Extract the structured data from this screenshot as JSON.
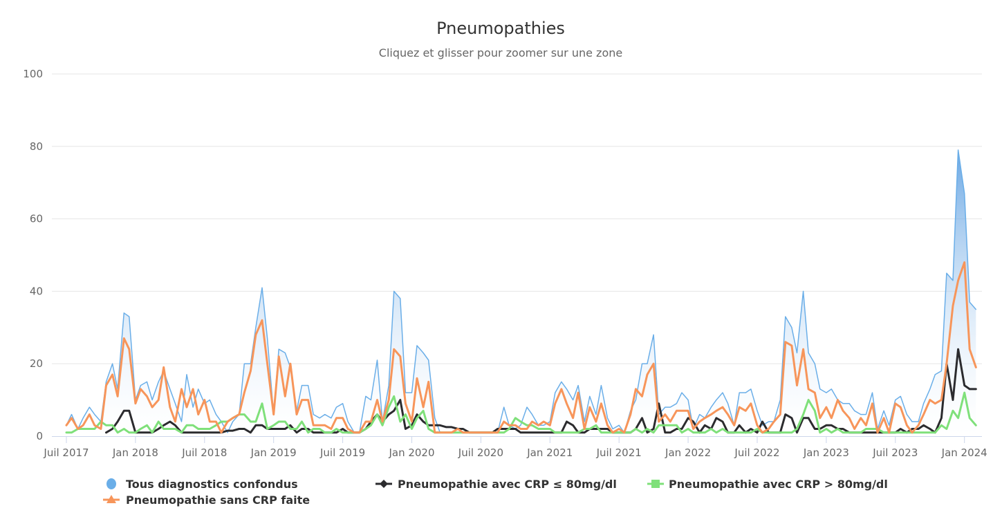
{
  "chart_data": {
    "type": "area",
    "title": "Pneumopathies",
    "subtitle": "Cliquez et glisser pour zoomer sur une zone",
    "xlabel": "",
    "ylabel": "",
    "ylim": [
      0,
      100
    ],
    "grid": true,
    "legend_position": "bottom",
    "y_ticks": [
      "0",
      "20",
      "40",
      "60",
      "80",
      "100"
    ],
    "x_ticks": [
      {
        "label": "Juil 2017",
        "date": "2017-07-01"
      },
      {
        "label": "Jan 2018",
        "date": "2018-01-01"
      },
      {
        "label": "Juil 2018",
        "date": "2018-07-01"
      },
      {
        "label": "Jan 2019",
        "date": "2019-01-01"
      },
      {
        "label": "Juil 2019",
        "date": "2019-07-01"
      },
      {
        "label": "Jan 2020",
        "date": "2020-01-01"
      },
      {
        "label": "Juil 2020",
        "date": "2020-07-01"
      },
      {
        "label": "Jan 2021",
        "date": "2021-01-01"
      },
      {
        "label": "Juil 2021",
        "date": "2021-07-01"
      },
      {
        "label": "Jan 2022",
        "date": "2022-01-01"
      },
      {
        "label": "Juil 2022",
        "date": "2022-07-01"
      },
      {
        "label": "Jan 2023",
        "date": "2023-01-01"
      },
      {
        "label": "Juil 2023",
        "date": "2023-07-01"
      },
      {
        "label": "Jan 2024",
        "date": "2024-01-01"
      }
    ],
    "x": [
      "2017-07-01",
      "2017-07-15",
      "2017-08-01",
      "2017-08-15",
      "2017-09-01",
      "2017-09-15",
      "2017-10-01",
      "2017-10-15",
      "2017-11-01",
      "2017-11-15",
      "2017-12-01",
      "2017-12-15",
      "2018-01-01",
      "2018-01-15",
      "2018-02-01",
      "2018-02-15",
      "2018-03-01",
      "2018-03-15",
      "2018-04-01",
      "2018-04-15",
      "2018-05-01",
      "2018-05-15",
      "2018-06-01",
      "2018-06-15",
      "2018-07-01",
      "2018-07-15",
      "2018-08-01",
      "2018-08-15",
      "2018-09-01",
      "2018-09-15",
      "2018-10-01",
      "2018-10-15",
      "2018-11-01",
      "2018-11-15",
      "2018-12-01",
      "2018-12-15",
      "2019-01-01",
      "2019-01-15",
      "2019-02-01",
      "2019-02-15",
      "2019-03-01",
      "2019-03-15",
      "2019-04-01",
      "2019-04-15",
      "2019-05-01",
      "2019-05-15",
      "2019-06-01",
      "2019-06-15",
      "2019-07-01",
      "2019-07-15",
      "2019-08-01",
      "2019-08-15",
      "2019-09-01",
      "2019-09-15",
      "2019-10-01",
      "2019-10-15",
      "2019-11-01",
      "2019-11-15",
      "2019-12-01",
      "2019-12-15",
      "2020-01-01",
      "2020-01-15",
      "2020-02-01",
      "2020-02-15",
      "2020-03-01",
      "2020-03-15",
      "2020-04-01",
      "2020-04-15",
      "2020-05-01",
      "2020-05-15",
      "2020-06-01",
      "2020-06-15",
      "2020-07-01",
      "2020-07-15",
      "2020-08-01",
      "2020-08-15",
      "2020-09-01",
      "2020-09-15",
      "2020-10-01",
      "2020-10-15",
      "2020-11-01",
      "2020-11-15",
      "2020-12-01",
      "2020-12-15",
      "2021-01-01",
      "2021-01-15",
      "2021-02-01",
      "2021-02-15",
      "2021-03-01",
      "2021-03-15",
      "2021-04-01",
      "2021-04-15",
      "2021-05-01",
      "2021-05-15",
      "2021-06-01",
      "2021-06-15",
      "2021-07-01",
      "2021-07-15",
      "2021-08-01",
      "2021-08-15",
      "2021-09-01",
      "2021-09-15",
      "2021-10-01",
      "2021-10-15",
      "2021-11-01",
      "2021-11-15",
      "2021-12-01",
      "2021-12-15",
      "2022-01-01",
      "2022-01-15",
      "2022-02-01",
      "2022-02-15",
      "2022-03-01",
      "2022-03-15",
      "2022-04-01",
      "2022-04-15",
      "2022-05-01",
      "2022-05-15",
      "2022-06-01",
      "2022-06-15",
      "2022-07-01",
      "2022-07-15",
      "2022-08-01",
      "2022-08-15",
      "2022-09-01",
      "2022-09-15",
      "2022-10-01",
      "2022-10-15",
      "2022-11-01",
      "2022-11-15",
      "2022-12-01",
      "2022-12-15",
      "2023-01-01",
      "2023-01-15",
      "2023-02-01",
      "2023-02-15",
      "2023-03-01",
      "2023-03-15",
      "2023-04-01",
      "2023-04-15",
      "2023-05-01",
      "2023-05-15",
      "2023-06-01",
      "2023-06-15",
      "2023-07-01",
      "2023-07-15",
      "2023-08-01",
      "2023-08-15",
      "2023-09-01",
      "2023-09-15",
      "2023-10-01",
      "2023-10-15",
      "2023-11-01",
      "2023-11-15",
      "2023-12-01",
      "2023-12-15",
      "2024-01-01",
      "2024-01-15",
      "2024-02-01"
    ],
    "series": [
      {
        "name": "Tous diagnostics confondus",
        "type": "area",
        "color": "#6aaee8",
        "marker": "circle",
        "values": [
          3,
          6,
          2,
          5,
          8,
          6,
          4,
          15,
          20,
          13,
          34,
          33,
          10,
          14,
          15,
          10,
          15,
          18,
          13,
          9,
          4,
          17,
          8,
          13,
          9,
          10,
          6,
          4,
          1,
          4,
          6,
          20,
          20,
          30,
          41,
          27,
          6,
          24,
          23,
          19,
          7,
          14,
          14,
          6,
          5,
          6,
          5,
          8,
          9,
          4,
          1,
          1,
          11,
          10,
          21,
          4,
          14,
          40,
          38,
          12,
          12,
          25,
          23,
          21,
          5,
          1,
          1,
          1,
          1,
          1,
          1,
          1,
          1,
          1,
          1,
          1,
          8,
          3,
          2,
          3,
          8,
          6,
          3,
          3,
          4,
          12,
          15,
          13,
          10,
          14,
          4,
          11,
          6,
          14,
          5,
          2,
          3,
          1,
          7,
          10,
          20,
          20,
          28,
          6,
          8,
          8,
          9,
          12,
          10,
          2,
          6,
          5,
          8,
          10,
          12,
          9,
          3,
          12,
          12,
          13,
          7,
          3,
          4,
          4,
          10,
          33,
          30,
          23,
          40,
          23,
          20,
          13,
          12,
          13,
          10,
          9,
          9,
          7,
          6,
          6,
          12,
          2,
          7,
          3,
          10,
          11,
          6,
          4,
          4,
          9,
          13,
          17,
          18,
          45,
          43,
          79,
          67,
          37,
          35
        ]
      },
      {
        "name": "Pneumopathie avec CRP ≤ 80mg/dl",
        "type": "line",
        "color": "#2b2b2e",
        "marker": "diamond",
        "values": [
          null,
          null,
          null,
          null,
          null,
          null,
          null,
          1,
          2,
          4,
          7,
          7,
          1,
          1,
          1,
          1,
          2,
          3,
          4,
          3,
          1,
          1,
          1,
          1,
          1,
          1,
          1,
          1,
          1.5,
          1.5,
          2,
          2,
          1,
          3,
          3,
          2,
          2,
          2,
          2,
          3,
          1,
          2,
          2,
          1,
          1,
          1,
          1,
          1,
          2,
          1,
          1,
          1,
          2,
          4,
          6,
          4,
          6,
          7,
          10,
          2,
          3,
          6,
          4,
          3,
          3,
          3,
          2.5,
          2.5,
          2,
          2,
          1,
          1,
          1,
          1,
          1,
          2,
          2,
          2,
          2,
          1,
          1,
          1,
          1,
          1,
          1,
          1,
          1,
          4,
          3,
          1,
          1,
          2,
          2,
          2,
          2,
          1,
          1,
          1,
          1,
          2,
          5,
          1,
          2,
          9,
          1,
          1,
          2,
          2,
          5,
          4,
          1,
          3,
          2,
          5,
          4,
          1,
          1,
          3,
          1,
          2,
          1,
          4,
          1,
          1,
          1,
          6,
          5,
          1,
          5,
          5,
          2,
          2,
          3,
          3,
          2,
          2,
          1,
          1,
          1,
          1,
          1,
          1,
          1,
          1,
          1,
          2,
          1,
          2,
          2,
          3,
          2,
          1,
          5,
          20,
          10,
          24,
          14,
          13,
          13
        ]
      },
      {
        "name": "Pneumopathie avec CRP > 80mg/dl",
        "type": "line",
        "color": "#7fe07a",
        "marker": "square",
        "values": [
          1,
          1,
          2,
          2,
          2,
          2,
          4,
          3,
          3,
          1,
          2,
          1,
          1,
          2,
          3,
          1,
          4,
          2,
          2,
          2,
          1,
          3,
          3,
          2,
          2,
          2,
          3,
          4,
          4,
          5,
          6,
          6,
          4,
          4,
          9,
          2,
          3,
          4,
          4,
          2,
          2,
          4,
          1,
          2,
          2,
          1,
          1,
          2,
          1,
          1,
          1,
          1,
          2,
          3,
          6,
          3,
          8,
          11,
          4,
          6,
          2,
          5,
          7,
          2,
          1,
          1,
          1,
          1,
          1,
          1,
          1,
          1,
          1,
          1,
          1,
          1,
          1,
          2,
          5,
          4,
          3,
          3,
          2,
          2,
          2,
          1,
          1,
          1,
          1,
          1,
          2,
          2,
          3,
          1,
          1,
          1,
          1,
          1,
          1,
          2,
          1,
          2,
          1,
          3,
          3,
          3,
          3,
          1,
          2,
          1,
          1,
          1,
          2,
          1,
          2,
          1,
          1,
          1,
          1,
          1,
          2,
          1,
          1,
          1,
          1,
          1,
          1,
          2,
          6,
          10,
          7,
          1,
          2,
          1,
          2,
          1,
          1,
          1,
          1,
          2,
          2,
          2,
          1,
          1,
          1,
          1,
          1,
          1,
          1,
          1,
          1,
          1,
          3,
          2,
          7,
          5,
          12,
          5,
          3
        ]
      },
      {
        "name": "Pneumopathie sans CRP faite",
        "type": "line",
        "color": "#f7955a",
        "marker": "triangle",
        "values": [
          3,
          5,
          2,
          3,
          6,
          3,
          2,
          14,
          17,
          11,
          27,
          24,
          9,
          13,
          11,
          8,
          10,
          19,
          8,
          4,
          13,
          8,
          13,
          6,
          10,
          4,
          4,
          1,
          4,
          5,
          6,
          12,
          18,
          28,
          32,
          20,
          6,
          22,
          11,
          20,
          6,
          10,
          10,
          3,
          3,
          3,
          2,
          5,
          5,
          2,
          1,
          1,
          4,
          4,
          10,
          4,
          10,
          24,
          22,
          9,
          4,
          16,
          8,
          15,
          1,
          1,
          1,
          1,
          2,
          1,
          1,
          1,
          1,
          1,
          1,
          1,
          4,
          3,
          3,
          2,
          2,
          4,
          3,
          4,
          3,
          9,
          13,
          9,
          5,
          12,
          2,
          8,
          4,
          9,
          3,
          1,
          2,
          1,
          6,
          13,
          11,
          17,
          20,
          4,
          6,
          4,
          7,
          7,
          7,
          2,
          4,
          5,
          6,
          7,
          8,
          6,
          3,
          8,
          7,
          9,
          3,
          1,
          2,
          4,
          6,
          26,
          25,
          14,
          24,
          13,
          12,
          5,
          8,
          5,
          10,
          7,
          5,
          2,
          5,
          3,
          9,
          1,
          5,
          1,
          9,
          8,
          3,
          1,
          3,
          6,
          10,
          9,
          10,
          20,
          36,
          43,
          48,
          24,
          19
        ]
      }
    ]
  }
}
